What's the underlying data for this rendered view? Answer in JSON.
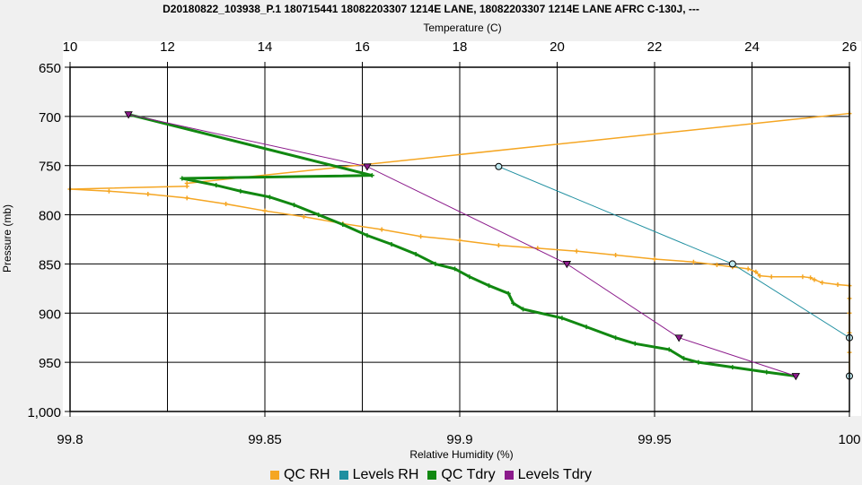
{
  "chart_data": {
    "type": "line",
    "title": "D20180822_103938_P.1 180715441 18082203307 1214E LANE, 18082203307 1214E LANE AFRC C-130J, ---",
    "top_axis": {
      "label": "Temperature (C)",
      "range": [
        10,
        26
      ],
      "ticks": [
        "10",
        "12",
        "14",
        "16",
        "18",
        "20",
        "22",
        "24",
        "26"
      ]
    },
    "bottom_axis": {
      "label": "Relative Humidity (%)",
      "range": [
        99.8,
        100
      ],
      "ticks": [
        "99.8",
        "99.85",
        "99.9",
        "99.95",
        "100"
      ]
    },
    "y_axis": {
      "label": "Pressure (mb)",
      "range": [
        650,
        1000
      ],
      "inverted": true,
      "ticks": [
        "650",
        "700",
        "750",
        "800",
        "850",
        "900",
        "950",
        "1,000"
      ]
    },
    "grid": true,
    "legend_position": "bottom",
    "series": [
      {
        "name": "QC RH",
        "axis": "bottom",
        "color": "#f5a623",
        "marker": "plus",
        "points": [
          [
            100,
            963
          ],
          [
            100,
            940
          ],
          [
            100,
            920
          ],
          [
            100,
            900
          ],
          [
            100,
            885
          ],
          [
            100,
            872
          ],
          [
            99.997,
            871
          ],
          [
            99.993,
            869
          ],
          [
            99.991,
            866
          ],
          [
            99.99,
            864
          ],
          [
            99.988,
            863
          ],
          [
            99.98,
            863
          ],
          [
            99.977,
            862
          ],
          [
            99.976,
            858
          ],
          [
            99.974,
            855
          ],
          [
            99.97,
            853
          ],
          [
            99.966,
            851
          ],
          [
            99.96,
            848
          ],
          [
            99.95,
            845
          ],
          [
            99.94,
            841
          ],
          [
            99.93,
            837
          ],
          [
            99.92,
            834
          ],
          [
            99.91,
            831
          ],
          [
            99.9,
            826
          ],
          [
            99.89,
            822
          ],
          [
            99.88,
            815
          ],
          [
            99.87,
            809
          ],
          [
            99.86,
            802
          ],
          [
            99.85,
            796
          ],
          [
            99.84,
            789
          ],
          [
            99.83,
            783
          ],
          [
            99.82,
            779
          ],
          [
            99.81,
            776
          ],
          [
            99.8,
            774
          ],
          [
            99.83,
            771
          ],
          [
            99.83,
            768
          ],
          [
            100,
            697
          ]
        ]
      },
      {
        "name": "Levels RH",
        "axis": "bottom",
        "color": "#1f8fa0",
        "marker": "circle",
        "points": [
          [
            100,
            964
          ],
          [
            100,
            925
          ],
          [
            99.97,
            850
          ],
          [
            99.91,
            751
          ]
        ]
      },
      {
        "name": "QC Tdry",
        "axis": "top",
        "color": "#118811",
        "marker": "plus",
        "points": [
          [
            24.9,
            964
          ],
          [
            24.3,
            960
          ],
          [
            23.6,
            955
          ],
          [
            22.9,
            950
          ],
          [
            22.6,
            946
          ],
          [
            22.3,
            937
          ],
          [
            21.6,
            931
          ],
          [
            21.2,
            925
          ],
          [
            20.6,
            914
          ],
          [
            20.1,
            905
          ],
          [
            19.3,
            896
          ],
          [
            19.1,
            890
          ],
          [
            19.0,
            880
          ],
          [
            18.6,
            872
          ],
          [
            18.2,
            863
          ],
          [
            17.9,
            855
          ],
          [
            17.5,
            850
          ],
          [
            17.1,
            840
          ],
          [
            16.6,
            830
          ],
          [
            16.1,
            821
          ],
          [
            15.6,
            810
          ],
          [
            15.1,
            800
          ],
          [
            14.6,
            790
          ],
          [
            14.1,
            782
          ],
          [
            13.5,
            776
          ],
          [
            13.0,
            770
          ],
          [
            12.3,
            763
          ],
          [
            16.2,
            760
          ],
          [
            11.2,
            698
          ]
        ]
      },
      {
        "name": "Levels Tdry",
        "axis": "top",
        "color": "#8b1a8b",
        "marker": "triangle",
        "points": [
          [
            24.9,
            964
          ],
          [
            22.5,
            925
          ],
          [
            20.2,
            850
          ],
          [
            16.1,
            751
          ],
          [
            11.2,
            698
          ]
        ]
      }
    ]
  }
}
